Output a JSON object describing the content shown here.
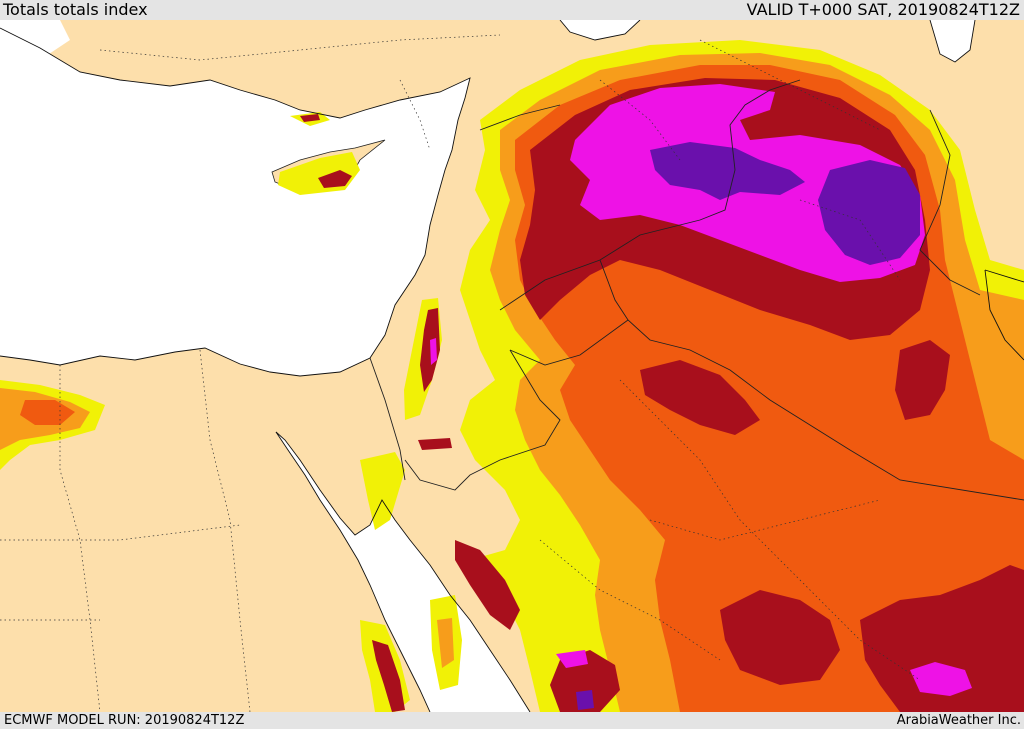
{
  "header": {
    "title": "Totals totals index",
    "valid": "VALID T+000 SAT, 20190824T12Z"
  },
  "footer": {
    "model_run": "ECMWF MODEL RUN: 20190824T12Z",
    "credit": "ArabiaWeather Inc."
  },
  "map": {
    "region": "eastern-mediterranean-middle-east",
    "colors": {
      "land": "#fddfab",
      "sea": "#ffffff",
      "yellow": "#f1f106",
      "orange": "#f79d1b",
      "red_orange": "#f05a10",
      "dark_red": "#a80f1c",
      "magenta": "#ee12e6",
      "purple": "#6a10ac",
      "boundary": "#222222"
    }
  }
}
